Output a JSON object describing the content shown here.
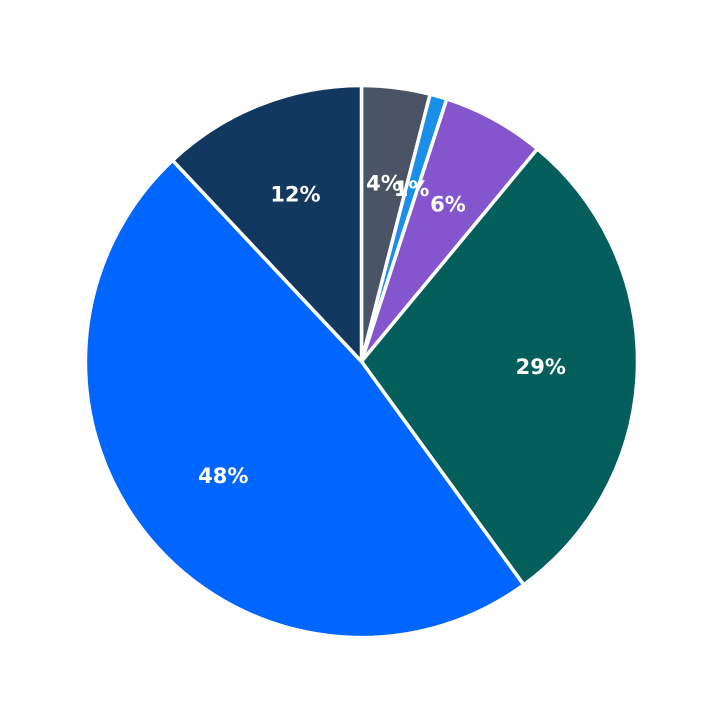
{
  "chart_data": {
    "type": "pie",
    "title": "",
    "start": "12 o'clock",
    "direction": "clockwise",
    "slices": [
      {
        "value": 4,
        "label": "4%",
        "color": "#4a5464"
      },
      {
        "value": 1,
        "label": "1%",
        "color": "#1a8fe8"
      },
      {
        "value": 6,
        "label": "6%",
        "color": "#8455cc"
      },
      {
        "value": 29,
        "label": "29%",
        "color": "#035e5c"
      },
      {
        "value": 48,
        "label": "48%",
        "color": "#0066ff"
      },
      {
        "value": 12,
        "label": "12%",
        "color": "#13385f"
      }
    ]
  }
}
